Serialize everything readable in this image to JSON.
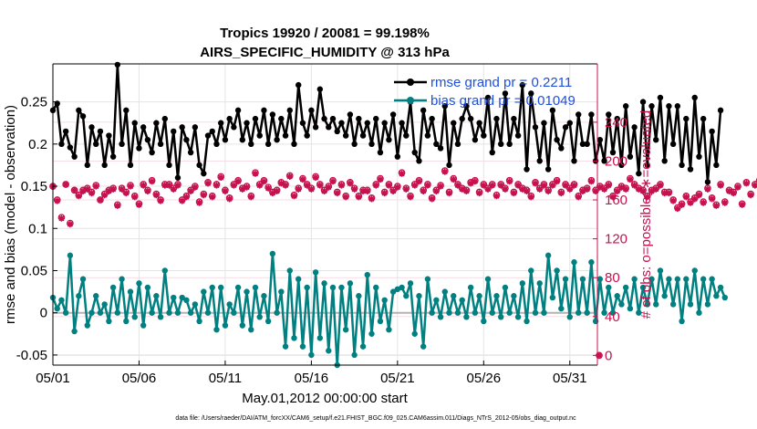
{
  "chart_data": {
    "type": "line",
    "title_line1": "Tropics 19920 / 20081 = 99.198%",
    "title_line2": "AIRS_SPECIFIC_HUMIDITY @ 313 hPa",
    "xlabel": "May.01,2012 00:00:00 start",
    "ylabel_left": "rmse and bias (model - observation)",
    "ylabel_right": "# of obs: o=possible; ∗=evaluated",
    "xlim": [
      0,
      31.6
    ],
    "ylim_left": [
      -0.062,
      0.295
    ],
    "ylim_right": [
      -10,
      300
    ],
    "x_ticks": [
      0,
      5,
      10,
      15,
      20,
      25,
      30
    ],
    "x_tick_labels": [
      "05/01",
      "05/06",
      "05/11",
      "05/16",
      "05/21",
      "05/26",
      "05/31"
    ],
    "y_left_ticks": [
      -0.05,
      0,
      0.05,
      0.1,
      0.15,
      0.2,
      0.25
    ],
    "y_left_tick_labels": [
      "-0.05",
      "0",
      "0.05",
      "0.1",
      "0.15",
      "0.2",
      "0.25"
    ],
    "y_right_ticks": [
      0,
      40,
      80,
      120,
      160,
      200,
      240
    ],
    "y_right_tick_labels": [
      "0",
      "40",
      "80",
      "120",
      "160",
      "200",
      "240"
    ],
    "x_step_days": 0.25,
    "series": [
      {
        "name": "rmse",
        "legend": "rmse grand pr = 0.2211",
        "color": "#000000",
        "axis": "left",
        "values": [
          0.24,
          0.248,
          0.2,
          0.215,
          0.196,
          0.185,
          0.24,
          0.233,
          0.175,
          0.22,
          0.2,
          0.215,
          0.175,
          0.21,
          0.185,
          0.294,
          0.2,
          0.24,
          0.175,
          0.225,
          0.195,
          0.22,
          0.205,
          0.19,
          0.225,
          0.2,
          0.23,
          0.175,
          0.215,
          0.16,
          0.22,
          0.205,
          0.19,
          0.22,
          0.175,
          0.165,
          0.21,
          0.215,
          0.2,
          0.225,
          0.205,
          0.23,
          0.22,
          0.24,
          0.205,
          0.225,
          0.2,
          0.23,
          0.21,
          0.24,
          0.2,
          0.235,
          0.205,
          0.23,
          0.21,
          0.24,
          0.2,
          0.27,
          0.225,
          0.21,
          0.24,
          0.22,
          0.265,
          0.23,
          0.22,
          0.23,
          0.215,
          0.225,
          0.21,
          0.235,
          0.2,
          0.23,
          0.21,
          0.225,
          0.2,
          0.23,
          0.19,
          0.225,
          0.205,
          0.235,
          0.185,
          0.225,
          0.21,
          0.25,
          0.19,
          0.18,
          0.24,
          0.21,
          0.23,
          0.2,
          0.195,
          0.245,
          0.175,
          0.225,
          0.2,
          0.23,
          0.245,
          0.23,
          0.205,
          0.225,
          0.21,
          0.255,
          0.19,
          0.23,
          0.2,
          0.26,
          0.2,
          0.23,
          0.21,
          0.27,
          0.17,
          0.26,
          0.22,
          0.18,
          0.225,
          0.17,
          0.24,
          0.205,
          0.195,
          0.22,
          0.225,
          0.18,
          0.235,
          0.2,
          0.2,
          0.235,
          0.18,
          0.205,
          0.18,
          0.235,
          0.19,
          0.23,
          0.175,
          0.245,
          0.185,
          0.22,
          0.165,
          0.25,
          0.175,
          0.245,
          0.205,
          0.255,
          0.18,
          0.245,
          0.2,
          0.245,
          0.175,
          0.23,
          0.17,
          0.255,
          0.185,
          0.23,
          0.155,
          0.215,
          0.175,
          0.24
        ]
      },
      {
        "name": "bias",
        "legend": "bias grand pr = 0.01049",
        "color": "#008080",
        "axis": "left",
        "values": [
          0.018,
          0.005,
          0.015,
          0.0,
          0.068,
          -0.022,
          0.02,
          0.04,
          -0.015,
          0.0,
          0.02,
          0.0,
          0.01,
          -0.01,
          0.03,
          0.0,
          0.04,
          -0.01,
          0.025,
          -0.005,
          0.035,
          -0.015,
          0.03,
          0.0,
          0.02,
          -0.005,
          0.05,
          0.0,
          0.018,
          0.0,
          0.018,
          0.015,
          0.0,
          0.01,
          -0.01,
          0.025,
          0.0,
          0.03,
          -0.02,
          0.03,
          -0.015,
          0.01,
          0.0,
          0.03,
          -0.015,
          0.025,
          -0.02,
          0.03,
          -0.005,
          0.02,
          -0.01,
          0.07,
          0.0,
          0.025,
          -0.04,
          0.05,
          -0.03,
          0.04,
          -0.04,
          0.03,
          -0.05,
          0.048,
          -0.03,
          0.035,
          -0.045,
          0.03,
          -0.062,
          0.03,
          -0.02,
          0.035,
          -0.05,
          0.02,
          -0.04,
          0.045,
          -0.025,
          0.03,
          -0.01,
          0.015,
          -0.02,
          0.025,
          0.028,
          0.03,
          0.02,
          0.035,
          -0.025,
          0.02,
          -0.04,
          0.04,
          0.0,
          0.015,
          -0.005,
          0.025,
          0.0,
          0.02,
          0.0,
          0.015,
          -0.005,
          0.03,
          0.0,
          0.02,
          -0.01,
          0.04,
          0.0,
          0.02,
          -0.005,
          0.03,
          0.0,
          0.02,
          -0.005,
          0.035,
          -0.01,
          0.05,
          0.0,
          0.035,
          0.0,
          0.068,
          0.018,
          0.05,
          0.005,
          0.04,
          -0.005,
          0.06,
          0.0,
          0.04,
          0.0,
          0.06,
          -0.01,
          0.04,
          0.0,
          0.03,
          0.0,
          0.02,
          0.01,
          0.03,
          0.005,
          0.04,
          0.0,
          0.03,
          0.01,
          0.04,
          0.01,
          0.05,
          0.02,
          0.04,
          0.01,
          0.04,
          -0.01,
          0.04,
          0.01,
          0.05,
          0.0,
          0.04,
          0.01,
          0.04,
          0.02,
          0.03,
          0.018
        ]
      },
      {
        "name": "obs_possible",
        "legend": "o = possible",
        "color": "#c8104e",
        "axis": "right",
        "values": [
          174,
          160,
          142,
          176,
          136,
          170,
          165,
          170,
          172,
          168,
          175,
          160,
          166,
          170,
          172,
          155,
          172,
          168,
          175,
          164,
          156,
          176,
          170,
          180,
          166,
          160,
          176,
          176,
          172,
          176,
          160,
          164,
          170,
          174,
          158,
          166,
          178,
          164,
          176,
          184,
          170,
          162,
          176,
          180,
          172,
          174,
          164,
          188,
          176,
          180,
          173,
          168,
          170,
          178,
          176,
          185,
          165,
          172,
          182,
          176,
          172,
          184,
          176,
          170,
          174,
          180,
          168,
          176,
          164,
          178,
          172,
          164,
          170,
          170,
          162,
          176,
          182,
          168,
          176,
          170,
          174,
          188,
          172,
          164,
          176,
          180,
          170,
          176,
          162,
          170,
          175,
          190,
          168,
          182,
          176,
          172,
          170,
          178,
          180,
          168,
          176,
          172,
          176,
          165,
          176,
          172,
          180,
          168,
          176,
          172,
          170,
          164,
          178,
          172,
          176,
          170,
          176,
          180,
          168,
          176,
          172,
          176,
          164,
          170,
          172,
          180,
          170,
          174,
          172,
          176,
          164,
          170,
          174,
          172,
          182,
          176,
          172,
          170,
          164,
          170,
          172,
          176,
          168,
          168,
          160,
          152,
          156,
          164,
          158,
          162,
          166,
          158,
          172,
          162,
          155,
          176,
          158,
          170,
          168,
          174,
          156,
          178,
          166,
          176,
          180,
          176
        ]
      },
      {
        "name": "obs_evaluated",
        "legend": "∗ = evaluated",
        "color": "#c8104e",
        "axis": "right",
        "values": [
          174,
          159,
          141,
          176,
          135,
          170,
          164,
          169,
          171,
          167,
          174,
          160,
          165,
          169,
          171,
          154,
          171,
          167,
          174,
          163,
          155,
          175,
          169,
          179,
          165,
          159,
          175,
          175,
          171,
          175,
          159,
          163,
          169,
          173,
          157,
          165,
          177,
          163,
          175,
          183,
          169,
          161,
          175,
          179,
          171,
          173,
          163,
          187,
          175,
          179,
          172,
          167,
          169,
          177,
          175,
          184,
          164,
          171,
          181,
          175,
          171,
          183,
          175,
          169,
          173,
          179,
          167,
          175,
          163,
          177,
          171,
          163,
          169,
          169,
          161,
          175,
          181,
          167,
          175,
          169,
          173,
          187,
          171,
          163,
          175,
          179,
          169,
          175,
          161,
          169,
          174,
          189,
          167,
          181,
          175,
          171,
          169,
          177,
          179,
          167,
          175,
          171,
          175,
          164,
          175,
          171,
          179,
          167,
          175,
          171,
          169,
          163,
          177,
          171,
          175,
          169,
          175,
          179,
          167,
          175,
          171,
          175,
          163,
          169,
          171,
          179,
          169,
          173,
          171,
          175,
          163,
          169,
          173,
          171,
          181,
          175,
          171,
          169,
          163,
          169,
          171,
          175,
          167,
          167,
          159,
          151,
          155,
          163,
          157,
          161,
          165,
          157,
          171,
          161,
          154,
          175,
          157,
          169,
          167,
          173,
          155,
          177,
          165,
          175,
          179,
          175
        ]
      }
    ],
    "annotations": [
      "0"
    ]
  },
  "footer": {
    "text": "data file: /Users/raeder/DAI/ATM_forcXX/CAM6_setup/f.e21.FHIST_BGC.f09_025.CAM6assim.011/Diags_NTrS_2012-05/obs_diag_output.nc"
  }
}
